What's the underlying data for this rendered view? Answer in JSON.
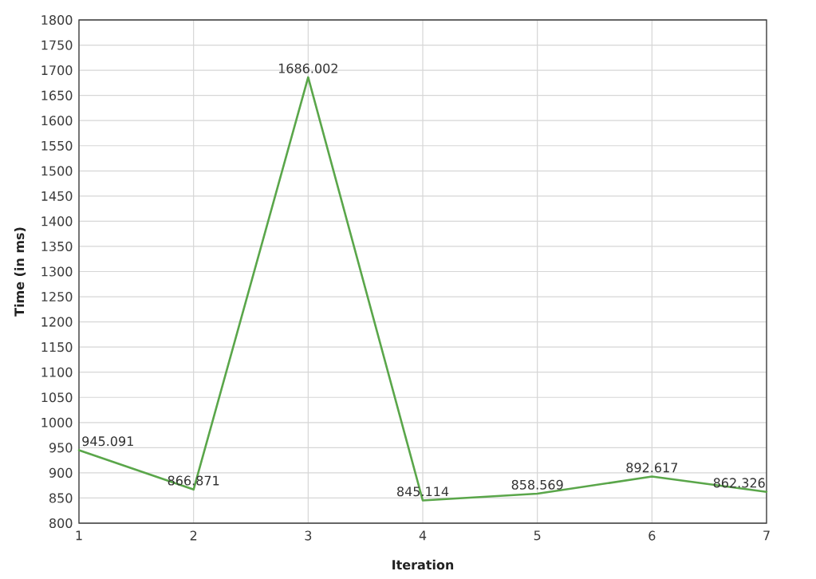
{
  "chart_data": {
    "type": "line",
    "xlabel": "Iteration",
    "ylabel": "Time (in ms)",
    "x": [
      1,
      2,
      3,
      4,
      5,
      6,
      7
    ],
    "values": [
      945.091,
      866.871,
      1686.002,
      845.114,
      858.569,
      892.617,
      862.326
    ],
    "color": "#5aa64a",
    "marker": "none",
    "line_style": "solid",
    "xlim": [
      1,
      7
    ],
    "xticks": [
      1,
      2,
      3,
      4,
      5,
      6,
      7
    ],
    "ylim": [
      800,
      1800
    ],
    "yticks": [
      800,
      850,
      900,
      950,
      1000,
      1050,
      1100,
      1150,
      1200,
      1250,
      1300,
      1350,
      1400,
      1450,
      1500,
      1550,
      1600,
      1650,
      1700,
      1750,
      1800
    ],
    "grid": true,
    "data_labels": true
  }
}
